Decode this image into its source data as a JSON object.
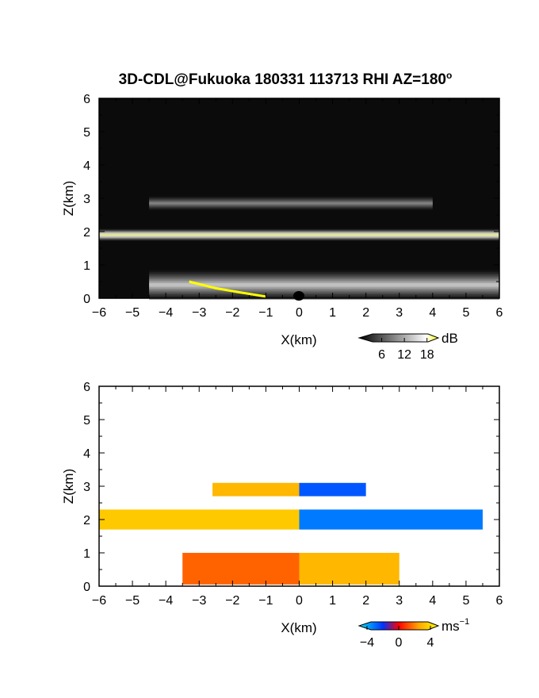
{
  "figure": {
    "title": "3D-CDL@Fukuoka 180331 113713 RHI AZ=180",
    "title_sup": "o"
  },
  "chart_data": [
    {
      "type": "heatmap",
      "name": "reflectivity",
      "xlabel": "X(km)",
      "ylabel": "Z(km)",
      "xlim": [
        -6,
        6
      ],
      "ylim": [
        0,
        6
      ],
      "xticks": [
        -6,
        -5,
        -4,
        -3,
        -2,
        -1,
        0,
        1,
        2,
        3,
        4,
        5,
        6
      ],
      "yticks": [
        0,
        1,
        2,
        3,
        4,
        5,
        6
      ],
      "colorbar": {
        "unit": "dB",
        "ticks": [
          6,
          12,
          18
        ],
        "range": [
          0,
          21
        ],
        "colors": [
          "#000000",
          "#ffffff",
          "#ffff00"
        ]
      },
      "layers": [
        {
          "z_center": 1.9,
          "z_halfwidth": 0.18,
          "x_range": [
            -6,
            6
          ],
          "peak_dB": 19
        },
        {
          "z_center": 2.85,
          "z_halfwidth": 0.22,
          "x_range": [
            -4.5,
            4
          ],
          "peak_dB": 8
        },
        {
          "z_center": 0.4,
          "z_halfwidth": 0.45,
          "x_range": [
            -4.5,
            6
          ],
          "peak_dB": 12
        }
      ],
      "ground_line": [
        [
          -3.3,
          0.5
        ],
        [
          -2.5,
          0.3
        ],
        [
          -1.8,
          0.18
        ],
        [
          -1.0,
          0.05
        ]
      ]
    },
    {
      "type": "heatmap",
      "name": "doppler-velocity",
      "xlabel": "X(km)",
      "ylabel": "Z(km)",
      "xlim": [
        -6,
        6
      ],
      "ylim": [
        0,
        6
      ],
      "xticks": [
        -6,
        -5,
        -4,
        -3,
        -2,
        -1,
        0,
        1,
        2,
        3,
        4,
        5,
        6
      ],
      "yticks": [
        0,
        1,
        2,
        3,
        4,
        5,
        6
      ],
      "colorbar": {
        "unit": "ms",
        "unit_sup": "−1",
        "ticks": [
          "−4",
          "0",
          "4"
        ],
        "range": [
          -5,
          5
        ],
        "colors": [
          "#00e5ff",
          "#0033ff",
          "#ff0000",
          "#ffa500",
          "#ffff00"
        ]
      },
      "regions": [
        {
          "x_range": [
            -6,
            0
          ],
          "z_range": [
            1.7,
            2.3
          ],
          "velocity": 3.5
        },
        {
          "x_range": [
            0,
            5.5
          ],
          "z_range": [
            1.7,
            2.3
          ],
          "velocity": -3.5
        },
        {
          "x_range": [
            -2.6,
            0
          ],
          "z_range": [
            2.7,
            3.1
          ],
          "velocity": 3
        },
        {
          "x_range": [
            0,
            2
          ],
          "z_range": [
            2.7,
            3.1
          ],
          "velocity": -3
        },
        {
          "x_range": [
            -3.5,
            0
          ],
          "z_range": [
            0.05,
            1
          ],
          "velocity": 1.5
        },
        {
          "x_range": [
            0,
            3
          ],
          "z_range": [
            0.05,
            1
          ],
          "velocity": 3
        }
      ]
    }
  ]
}
